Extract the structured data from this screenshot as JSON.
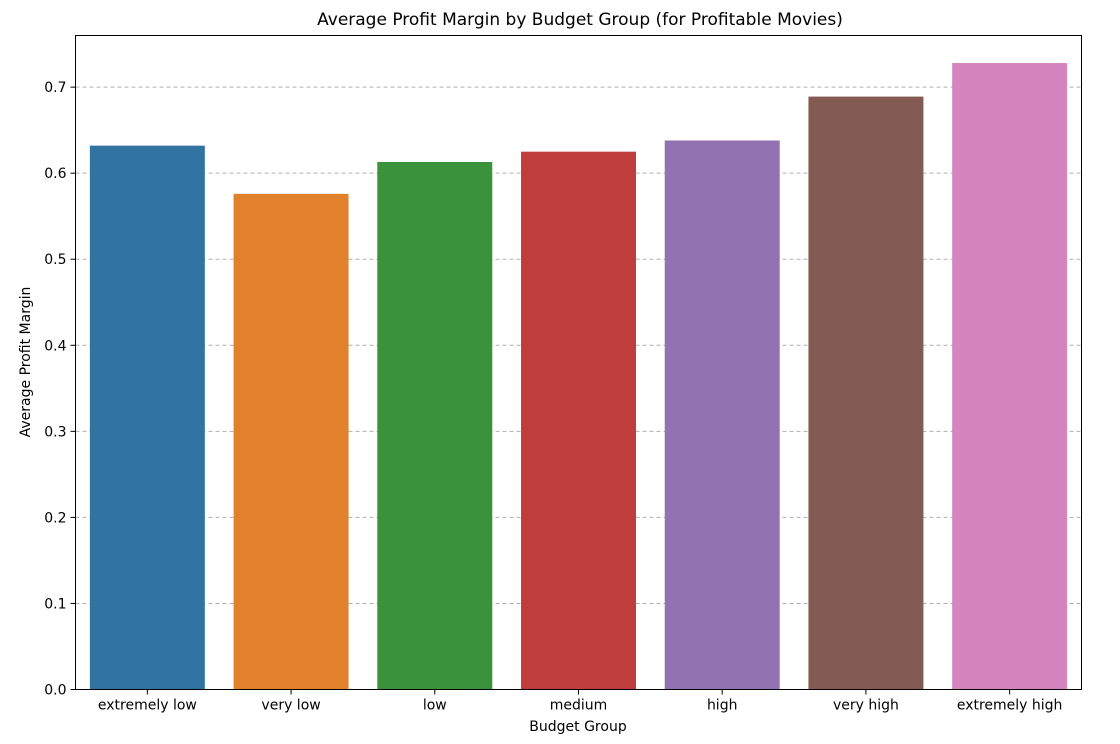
{
  "chart_data": {
    "type": "bar",
    "title": "Average Profit Margin by Budget Group (for Profitable Movies)",
    "xlabel": "Budget Group",
    "ylabel": "Average Profit Margin",
    "categories": [
      "extremely low",
      "very low",
      "low",
      "medium",
      "high",
      "very high",
      "extremely high"
    ],
    "values": [
      0.632,
      0.576,
      0.613,
      0.625,
      0.638,
      0.689,
      0.728
    ],
    "colors": [
      "#3274a1",
      "#e1812c",
      "#3a923a",
      "#c03d3e",
      "#9372b2",
      "#845b53",
      "#d684bd"
    ],
    "ylim": [
      0,
      0.76
    ],
    "yticks": [
      "0.0",
      "0.1",
      "0.2",
      "0.3",
      "0.4",
      "0.5",
      "0.6",
      "0.7"
    ],
    "grid": "horizontal dashed",
    "legend": "none"
  }
}
